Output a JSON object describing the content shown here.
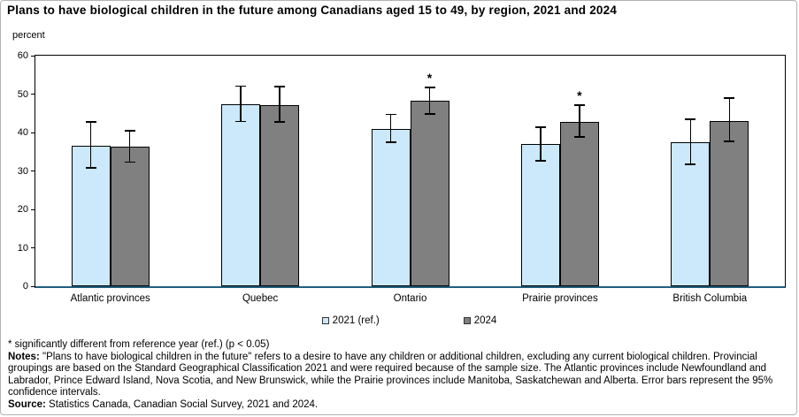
{
  "chart_data": {
    "type": "bar",
    "title": "Plans to have biological children in the future among Canadians aged 15 to 49, by region, 2021 and 2024",
    "ylabel": "percent",
    "xlabel": "",
    "ylim": [
      0,
      60
    ],
    "yticks": [
      0,
      10,
      20,
      30,
      40,
      50,
      60
    ],
    "grid": false,
    "legend_position": "bottom",
    "significance_marker": "*",
    "categories": [
      "Atlantic provinces",
      "Quebec",
      "Ontario",
      "Prairie provinces",
      "British Columbia"
    ],
    "series": [
      {
        "name": "2021 (ref.)",
        "color": "#CBE9FA",
        "values": [
          36.5,
          47.3,
          41.0,
          37.0,
          37.5
        ],
        "ci_low": [
          30.8,
          42.9,
          37.5,
          32.6,
          31.7
        ],
        "ci_high": [
          42.8,
          52.1,
          44.7,
          41.4,
          43.4
        ],
        "significant": [
          false,
          false,
          false,
          false,
          false
        ]
      },
      {
        "name": "2024",
        "color": "#808080",
        "values": [
          36.3,
          47.1,
          48.3,
          42.8,
          43.0
        ],
        "ci_low": [
          32.3,
          42.8,
          44.8,
          38.9,
          37.7
        ],
        "ci_high": [
          40.5,
          51.9,
          51.7,
          47.1,
          49.0
        ],
        "significant": [
          false,
          false,
          true,
          true,
          false
        ]
      }
    ],
    "axis_color": "#215E7D"
  },
  "footnotes": {
    "significance": "* significantly different from reference year (ref.) (p < 0.05)",
    "notes_label": "Notes:",
    "notes": "\"Plans to have biological children in the future\" refers to a desire to have any children or additional children, excluding any current biological children. Provincial groupings are based on the Standard Geographical Classification 2021 and were required because of the sample size. The Atlantic provinces include Newfoundland and Labrador, Prince Edward Island, Nova Scotia, and New Brunswick, while the Prairie provinces include Manitoba, Saskatchewan and Alberta. Error bars represent the 95% confidence intervals.",
    "source_label": "Source:",
    "source": "Statistics Canada, Canadian Social Survey, 2021 and 2024."
  }
}
